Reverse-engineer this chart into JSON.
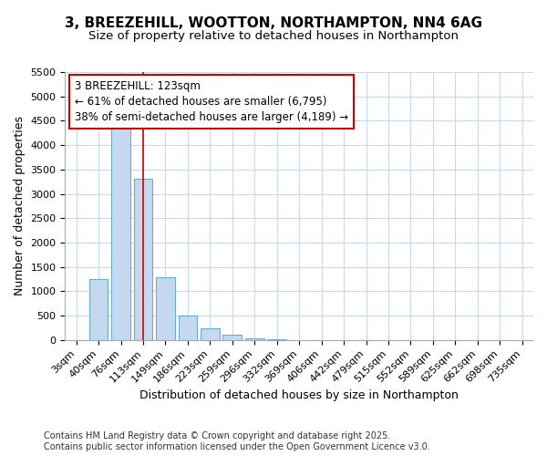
{
  "title_line1": "3, BREEZEHILL, WOOTTON, NORTHAMPTON, NN4 6AG",
  "title_line2": "Size of property relative to detached houses in Northampton",
  "xlabel": "Distribution of detached houses by size in Northampton",
  "ylabel": "Number of detached properties",
  "categories": [
    "3sqm",
    "40sqm",
    "76sqm",
    "113sqm",
    "149sqm",
    "186sqm",
    "223sqm",
    "259sqm",
    "296sqm",
    "332sqm",
    "369sqm",
    "406sqm",
    "442sqm",
    "479sqm",
    "515sqm",
    "552sqm",
    "589sqm",
    "625sqm",
    "662sqm",
    "698sqm",
    "735sqm"
  ],
  "values": [
    0,
    1250,
    4350,
    3300,
    1280,
    500,
    230,
    100,
    40,
    15,
    0,
    0,
    0,
    0,
    0,
    0,
    0,
    0,
    0,
    0,
    0
  ],
  "bar_color": "#c5d8f0",
  "bar_edgecolor": "#6aaad4",
  "vline_x_index": 3,
  "vline_color": "#cc0000",
  "annotation_text": "3 BREEZEHILL: 123sqm\n← 61% of detached houses are smaller (6,795)\n38% of semi-detached houses are larger (4,189) →",
  "annotation_box_edgecolor": "#cc0000",
  "annotation_box_facecolor": "#ffffff",
  "ylim": [
    0,
    5500
  ],
  "yticks": [
    0,
    500,
    1000,
    1500,
    2000,
    2500,
    3000,
    3500,
    4000,
    4500,
    5000,
    5500
  ],
  "bg_color": "#ffffff",
  "grid_color": "#c8d8ee",
  "footer_line1": "Contains HM Land Registry data © Crown copyright and database right 2025.",
  "footer_line2": "Contains public sector information licensed under the Open Government Licence v3.0.",
  "title_fontsize": 11,
  "subtitle_fontsize": 9.5,
  "axis_label_fontsize": 9,
  "tick_fontsize": 8,
  "annotation_fontsize": 8.5,
  "footer_fontsize": 7
}
